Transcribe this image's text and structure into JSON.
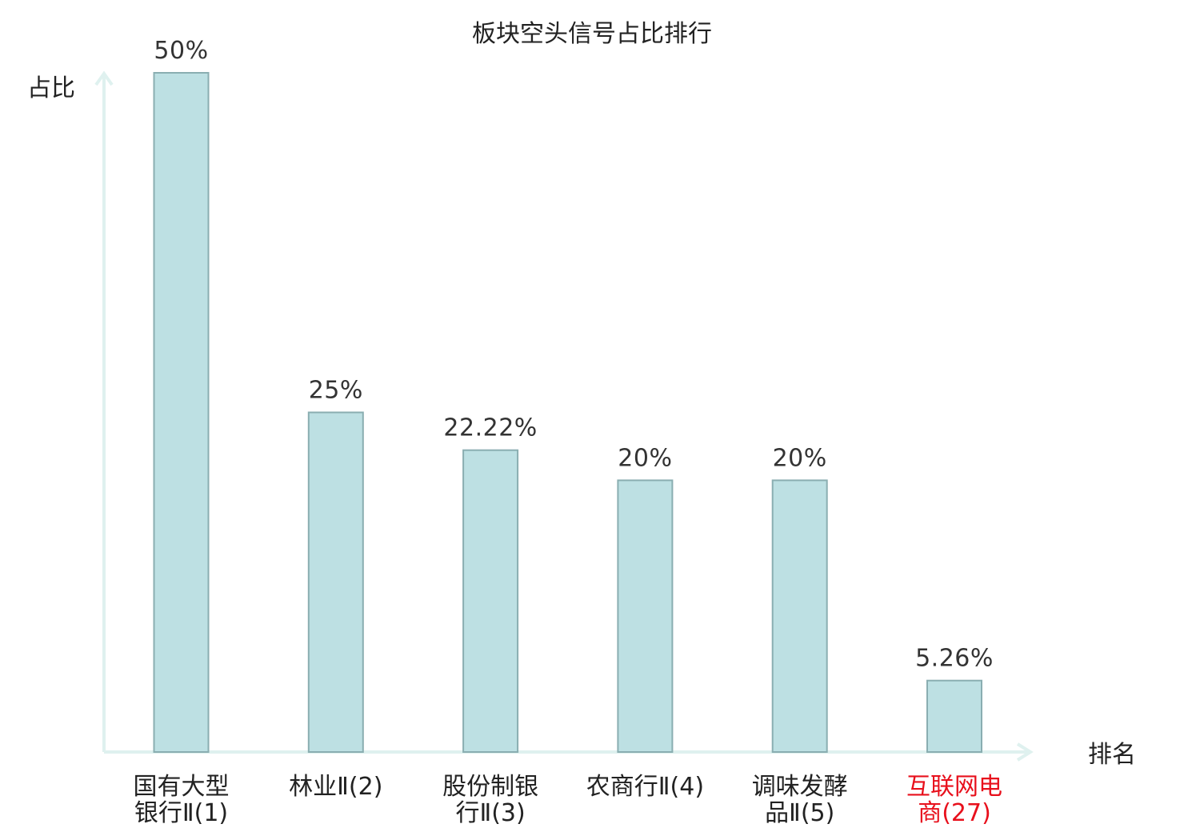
{
  "chart_data": {
    "type": "bar",
    "title": "板块空头信号占比排行",
    "xlabel": "排名",
    "ylabel": "占比",
    "categories": [
      [
        "国有大型",
        "银行Ⅱ(1)"
      ],
      [
        "林业Ⅱ(2)"
      ],
      [
        "股份制银",
        "行Ⅱ(3)"
      ],
      [
        "农商行Ⅱ(4)"
      ],
      [
        "调味发酵",
        "品Ⅱ(5)"
      ],
      [
        "互联网电",
        "商(27)"
      ]
    ],
    "values": [
      50,
      25,
      22.22,
      20,
      20,
      5.26
    ],
    "value_labels": [
      "50%",
      "25%",
      "22.22%",
      "20%",
      "20%",
      "5.26%"
    ],
    "highlighted_index": 5,
    "ylim": [
      0,
      50
    ],
    "grid": false,
    "legend": "none"
  },
  "colors": {
    "bar_fill": "#bde0e3",
    "bar_stroke": "#8aaeb1",
    "axis": "#dff1ef",
    "text": "#222222",
    "value_text": "#333333",
    "highlight": "#e8101c"
  }
}
